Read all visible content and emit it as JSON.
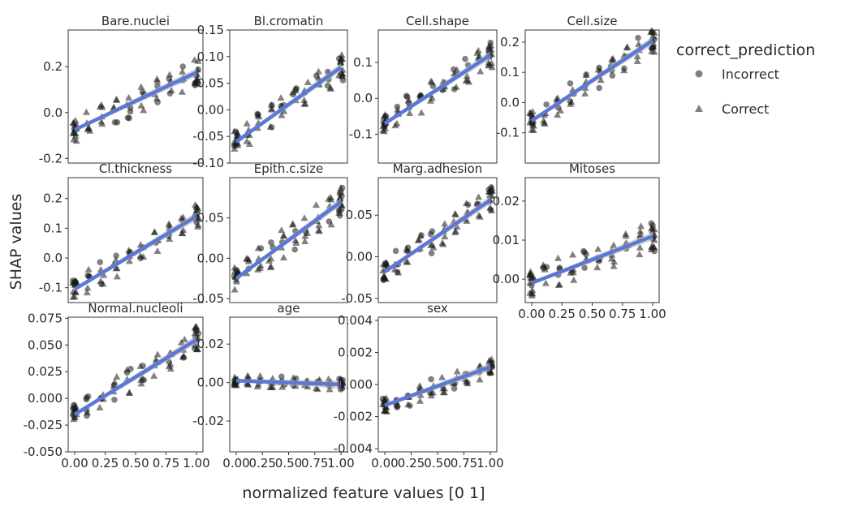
{
  "chart_data": {
    "type": "scatter",
    "title": "",
    "xlabel": "normalized feature values [0 1]",
    "ylabel": "SHAP values",
    "legend": {
      "title": "correct_prediction",
      "placement": "right",
      "entries": [
        {
          "name": "Incorrect",
          "shape": "circle"
        },
        {
          "name": "Correct",
          "shape": "triangle"
        }
      ]
    },
    "xlim": [
      0,
      1
    ],
    "xticks": [
      "0.00",
      "0.25",
      "0.50",
      "0.75",
      "1.00"
    ],
    "x_levels": [
      0,
      0.111,
      0.222,
      0.333,
      0.444,
      0.556,
      0.667,
      0.778,
      0.889,
      1
    ],
    "colors": {
      "points": "#1a1a1a",
      "trend": "#5a78d6",
      "band": "#b8b8b8",
      "frame": "#333333"
    },
    "panels": [
      {
        "name": "Bare.nuclei",
        "ylim": [
          -0.22,
          0.36
        ],
        "yticks": [
          -0.2,
          0.0,
          0.2
        ],
        "ytick_labels": [
          "-0.2",
          "0.0",
          "0.2"
        ],
        "trend": [
          -0.075,
          0.175
        ],
        "spread": 0.06
      },
      {
        "name": "Bl.cromatin",
        "ylim": [
          -0.1,
          0.15
        ],
        "yticks": [
          -0.1,
          -0.05,
          0.0,
          0.05,
          0.1,
          0.15
        ],
        "ytick_labels": [
          "-0.10",
          "-0.05",
          "0.00",
          "0.05",
          "0.10",
          "0.15"
        ],
        "trend": [
          -0.06,
          0.08
        ],
        "spread": 0.025
      },
      {
        "name": "Cell.shape",
        "ylim": [
          -0.18,
          0.19
        ],
        "yticks": [
          -0.1,
          0.0,
          0.1
        ],
        "ytick_labels": [
          "-0.1",
          "0.0",
          "0.1"
        ],
        "trend": [
          -0.07,
          0.12
        ],
        "spread": 0.035
      },
      {
        "name": "Cell.size",
        "ylim": [
          -0.2,
          0.24
        ],
        "yticks": [
          -0.1,
          0.0,
          0.1,
          0.2
        ],
        "ytick_labels": [
          "-0.1",
          "0.0",
          "0.1",
          "0.2"
        ],
        "trend": [
          -0.06,
          0.205
        ],
        "spread": 0.04
      },
      {
        "name": "Cl.thickness",
        "ylim": [
          -0.15,
          0.27
        ],
        "yticks": [
          -0.1,
          0.0,
          0.1,
          0.2
        ],
        "ytick_labels": [
          "-0.1",
          "0.0",
          "0.1",
          "0.2"
        ],
        "trend": [
          -0.105,
          0.14
        ],
        "spread": 0.04
      },
      {
        "name": "Epith.c.size",
        "ylim": [
          -0.055,
          0.1
        ],
        "yticks": [
          -0.05,
          0.0,
          0.05
        ],
        "ytick_labels": [
          "-0.05",
          "0.00",
          "0.05"
        ],
        "trend": [
          -0.025,
          0.07
        ],
        "spread": 0.018
      },
      {
        "name": "Marg.adhesion",
        "ylim": [
          -0.055,
          0.095
        ],
        "yticks": [
          -0.05,
          0.0,
          0.05
        ],
        "ytick_labels": [
          "-0.05",
          "0.00",
          "0.05"
        ],
        "trend": [
          -0.018,
          0.068
        ],
        "spread": 0.016
      },
      {
        "name": "Mitoses",
        "ylim": [
          -0.006,
          0.026
        ],
        "yticks": [
          0.0,
          0.01,
          0.02
        ],
        "ytick_labels": [
          "0.00",
          "0.01",
          "0.02"
        ],
        "trend": [
          -0.001,
          0.011
        ],
        "spread": 0.004
      },
      {
        "name": "Normal.nucleoli",
        "ylim": [
          -0.05,
          0.076
        ],
        "yticks": [
          -0.05,
          -0.025,
          0.0,
          0.025,
          0.05,
          0.075
        ],
        "ytick_labels": [
          "-0.050",
          "-0.025",
          "0.000",
          "0.025",
          "0.050",
          "0.075"
        ],
        "trend": [
          -0.015,
          0.055
        ],
        "spread": 0.013
      },
      {
        "name": "age",
        "ylim": [
          -0.036,
          0.034
        ],
        "yticks": [
          -0.02,
          0.0,
          0.02
        ],
        "ytick_labels": [
          "-0.02",
          "0.00",
          "0.02"
        ],
        "trend": [
          0.001,
          -0.001
        ],
        "spread": 0.003
      },
      {
        "name": "sex",
        "ylim": [
          -0.0042,
          0.0042
        ],
        "yticks": [
          -0.004,
          -0.002,
          0.0,
          0.002,
          0.004
        ],
        "ytick_labels": [
          "-0.004",
          "-0.002",
          "0.000",
          "0.002",
          "0.004"
        ],
        "trend": [
          -0.0013,
          0.0011
        ],
        "spread": 0.0006
      }
    ]
  }
}
